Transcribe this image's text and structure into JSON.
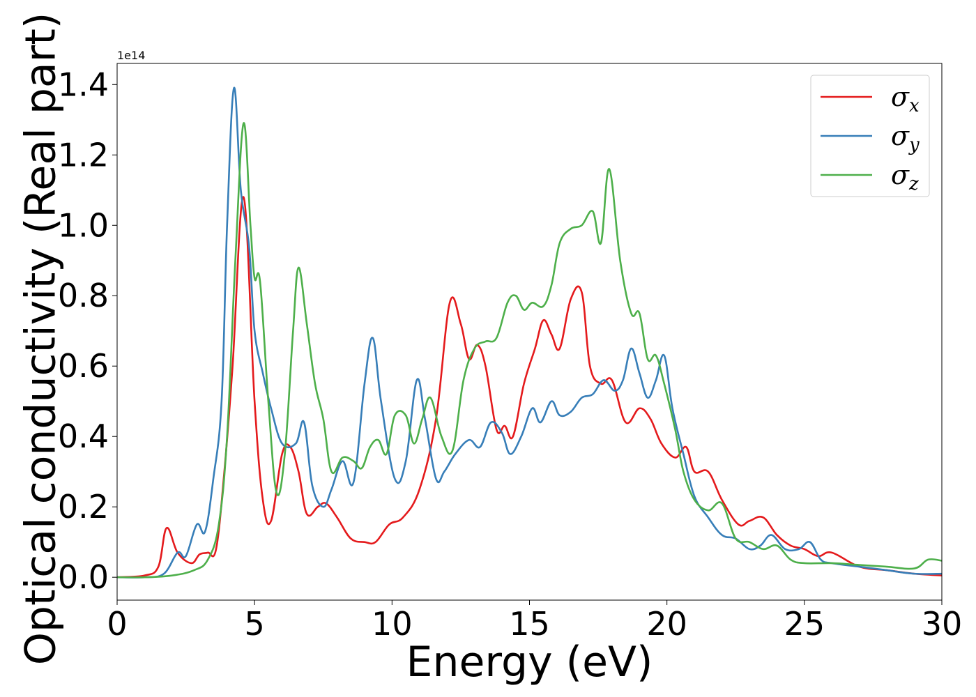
{
  "chart_data": {
    "type": "line",
    "title": "",
    "xlabel": "Energy (eV)",
    "ylabel": "Optical conductivity (Real part)",
    "y_offset_label": "1e14",
    "xlim": [
      0,
      30
    ],
    "ylim": [
      -0.065,
      1.46
    ],
    "x_ticks": [
      0,
      5,
      10,
      15,
      20,
      25,
      30
    ],
    "x_tick_labels": [
      "0",
      "5",
      "10",
      "15",
      "20",
      "25",
      "30"
    ],
    "y_ticks": [
      0.0,
      0.2,
      0.4,
      0.6,
      0.8,
      1.0,
      1.2,
      1.4
    ],
    "y_tick_labels": [
      "0.0",
      "0.2",
      "0.4",
      "0.6",
      "0.8",
      "1.0",
      "1.2",
      "1.4"
    ],
    "grid": false,
    "legend_position": "top-right",
    "series": [
      {
        "name": "σx",
        "symbol": "σ",
        "subscript": "x",
        "color": "#e41a1c",
        "x": [
          0,
          1,
          1.5,
          1.8,
          2.2,
          2.7,
          3.0,
          3.3,
          3.6,
          3.9,
          4.2,
          4.6,
          5.0,
          5.3,
          5.6,
          6.0,
          6.3,
          6.6,
          6.9,
          7.3,
          7.6,
          8.0,
          8.5,
          9.0,
          9.4,
          9.9,
          10.4,
          11.0,
          11.6,
          12.1,
          12.5,
          12.8,
          13.1,
          13.4,
          13.8,
          14.1,
          14.4,
          14.8,
          15.2,
          15.5,
          15.8,
          16.1,
          16.5,
          16.9,
          17.2,
          17.6,
          18.0,
          18.5,
          19.0,
          19.4,
          19.8,
          20.3,
          20.7,
          21.0,
          21.5,
          22.0,
          22.6,
          23.0,
          23.5,
          24.0,
          24.5,
          25.0,
          25.5,
          26.0,
          27.0,
          28.0,
          29.0,
          30.0
        ],
        "values": [
          0.0,
          0.005,
          0.03,
          0.14,
          0.07,
          0.04,
          0.065,
          0.07,
          0.08,
          0.3,
          0.6,
          1.08,
          0.5,
          0.22,
          0.16,
          0.35,
          0.37,
          0.3,
          0.18,
          0.2,
          0.21,
          0.17,
          0.11,
          0.1,
          0.1,
          0.15,
          0.17,
          0.25,
          0.45,
          0.78,
          0.72,
          0.62,
          0.66,
          0.6,
          0.42,
          0.43,
          0.4,
          0.55,
          0.65,
          0.73,
          0.69,
          0.65,
          0.79,
          0.81,
          0.6,
          0.55,
          0.56,
          0.44,
          0.48,
          0.45,
          0.38,
          0.34,
          0.37,
          0.3,
          0.3,
          0.22,
          0.15,
          0.16,
          0.17,
          0.12,
          0.09,
          0.08,
          0.06,
          0.07,
          0.03,
          0.02,
          0.01,
          0.005
        ]
      },
      {
        "name": "σy",
        "symbol": "σ",
        "subscript": "y",
        "color": "#377eb8",
        "x": [
          0,
          1,
          1.7,
          2.2,
          2.5,
          2.9,
          3.2,
          3.5,
          3.8,
          4.0,
          4.25,
          4.5,
          4.8,
          5.0,
          5.3,
          5.6,
          6.0,
          6.5,
          6.8,
          7.1,
          7.5,
          7.8,
          8.2,
          8.6,
          9.0,
          9.3,
          9.6,
          10.1,
          10.5,
          10.9,
          11.2,
          11.6,
          11.9,
          12.3,
          12.8,
          13.2,
          13.6,
          14.0,
          14.3,
          14.7,
          15.1,
          15.4,
          15.8,
          16.1,
          16.5,
          16.9,
          17.3,
          17.7,
          18.1,
          18.4,
          18.7,
          19.0,
          19.3,
          19.6,
          19.9,
          20.2,
          20.6,
          21.0,
          21.5,
          22.0,
          22.5,
          23.0,
          23.4,
          23.8,
          24.3,
          24.8,
          25.2,
          25.6,
          26.0,
          27.0,
          28.0,
          29.0,
          30.0
        ],
        "values": [
          0.0,
          0.0,
          0.01,
          0.07,
          0.06,
          0.15,
          0.13,
          0.28,
          0.5,
          1.0,
          1.39,
          1.1,
          0.94,
          0.7,
          0.58,
          0.48,
          0.38,
          0.38,
          0.44,
          0.26,
          0.2,
          0.25,
          0.33,
          0.27,
          0.55,
          0.68,
          0.5,
          0.28,
          0.33,
          0.56,
          0.45,
          0.28,
          0.3,
          0.35,
          0.39,
          0.37,
          0.44,
          0.41,
          0.35,
          0.4,
          0.48,
          0.44,
          0.5,
          0.46,
          0.47,
          0.51,
          0.52,
          0.56,
          0.53,
          0.56,
          0.65,
          0.58,
          0.51,
          0.56,
          0.63,
          0.48,
          0.35,
          0.23,
          0.17,
          0.12,
          0.11,
          0.08,
          0.09,
          0.12,
          0.08,
          0.08,
          0.1,
          0.05,
          0.04,
          0.03,
          0.02,
          0.01,
          0.01
        ]
      },
      {
        "name": "σz",
        "symbol": "σ",
        "subscript": "z",
        "color": "#4daf4a",
        "x": [
          0,
          1,
          2,
          2.8,
          3.3,
          3.7,
          4.0,
          4.3,
          4.6,
          4.85,
          5.0,
          5.2,
          5.5,
          5.8,
          6.1,
          6.4,
          6.6,
          6.9,
          7.2,
          7.5,
          7.8,
          8.2,
          8.6,
          8.9,
          9.2,
          9.5,
          9.8,
          10.1,
          10.5,
          10.8,
          11.1,
          11.4,
          11.8,
          12.2,
          12.6,
          13.0,
          13.4,
          13.8,
          14.2,
          14.5,
          14.8,
          15.1,
          15.5,
          15.8,
          16.1,
          16.5,
          16.9,
          17.3,
          17.6,
          17.9,
          18.3,
          18.7,
          19.0,
          19.3,
          19.6,
          19.9,
          20.3,
          20.6,
          21.0,
          21.5,
          22.0,
          22.5,
          23.0,
          23.5,
          24.0,
          24.5,
          25.0,
          26.0,
          27.0,
          28.0,
          29.0,
          29.5,
          30.0
        ],
        "values": [
          0.0,
          0.0,
          0.005,
          0.02,
          0.05,
          0.15,
          0.4,
          0.9,
          1.29,
          1.0,
          0.85,
          0.84,
          0.5,
          0.24,
          0.35,
          0.7,
          0.88,
          0.72,
          0.55,
          0.45,
          0.3,
          0.34,
          0.33,
          0.31,
          0.37,
          0.39,
          0.35,
          0.46,
          0.46,
          0.38,
          0.45,
          0.51,
          0.4,
          0.36,
          0.56,
          0.65,
          0.67,
          0.68,
          0.78,
          0.8,
          0.76,
          0.78,
          0.77,
          0.83,
          0.95,
          0.99,
          1.0,
          1.04,
          0.95,
          1.16,
          0.9,
          0.75,
          0.75,
          0.62,
          0.63,
          0.55,
          0.42,
          0.3,
          0.22,
          0.19,
          0.21,
          0.11,
          0.1,
          0.08,
          0.09,
          0.05,
          0.04,
          0.04,
          0.035,
          0.03,
          0.025,
          0.05,
          0.047
        ]
      }
    ]
  }
}
